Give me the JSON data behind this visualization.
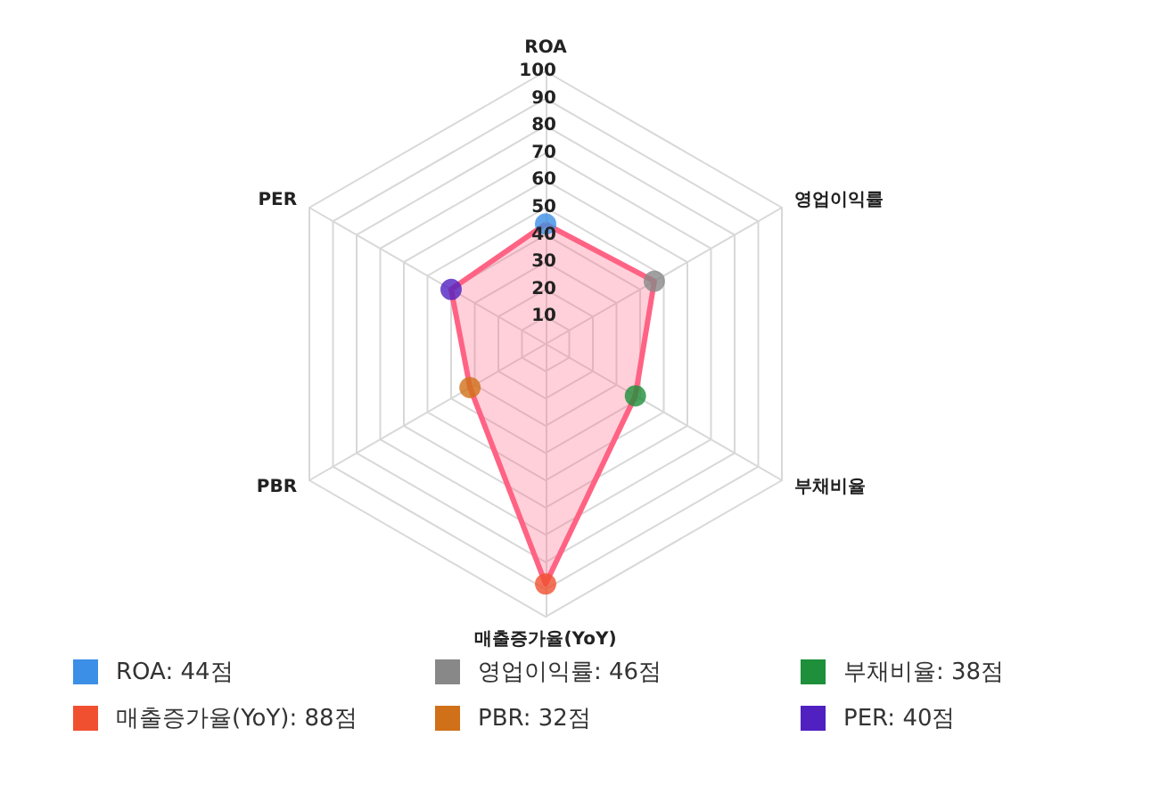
{
  "chart_data": {
    "type": "radar",
    "categories": [
      "ROA",
      "영업이익률",
      "부채비율",
      "매출증가율(YoY)",
      "PBR",
      "PER"
    ],
    "series": [
      {
        "color": "#ff6384",
        "colors": [
          "#3b8fe6",
          "#888888",
          "#1e8f3a",
          "#f05030",
          "#d07018",
          "#5020c0"
        ],
        "values": [
          44,
          46,
          38,
          88,
          32,
          40
        ]
      }
    ],
    "ylim": [
      0,
      100
    ],
    "yticks": [
      10,
      20,
      30,
      40,
      50,
      60,
      70,
      80,
      90,
      100
    ],
    "grid": true,
    "marker": "circle",
    "annotations": [
      "ROA: 44점",
      "영업이익률: 46점",
      "부채비율: 38점",
      "매출증가율(YoY): 88점",
      "PBR: 32점",
      "PER: 40점"
    ]
  }
}
